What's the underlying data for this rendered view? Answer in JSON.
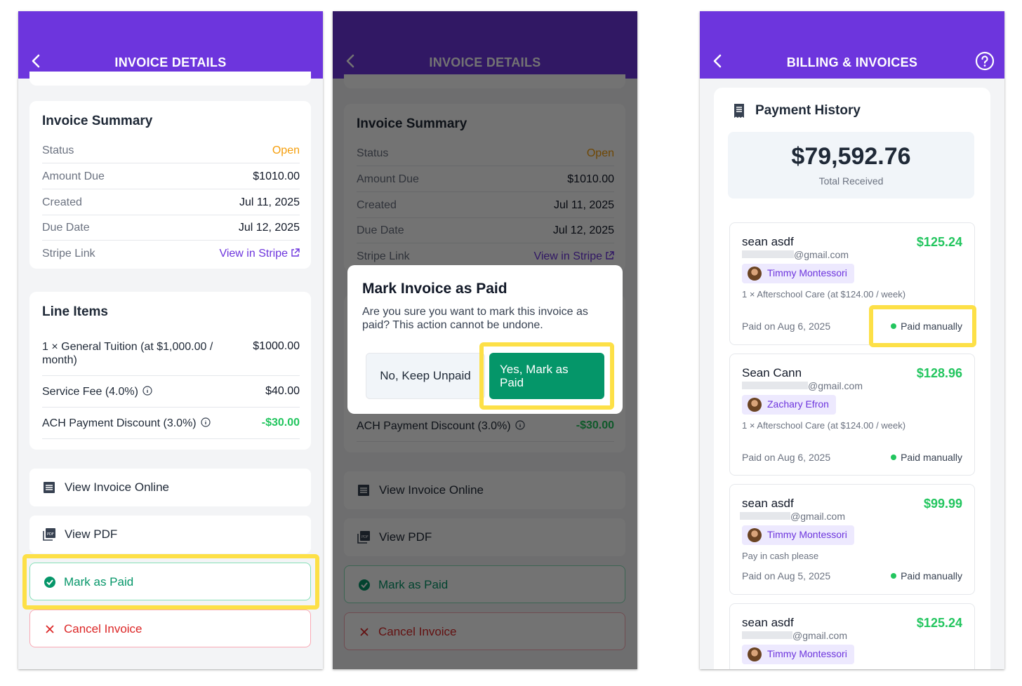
{
  "colors": {
    "brand": "#6d35dd",
    "success": "#059669",
    "positive_amount": "#22c55e",
    "danger": "#dc2626",
    "warning": "#f59e0b",
    "highlight": "#fde047"
  },
  "screen1": {
    "header_title": "INVOICE DETAILS",
    "summary": {
      "title": "Invoice Summary",
      "rows": [
        {
          "label": "Status",
          "value": "Open"
        },
        {
          "label": "Amount Due",
          "value": "$1010.00"
        },
        {
          "label": "Created",
          "value": "Jul 11, 2025"
        },
        {
          "label": "Due Date",
          "value": "Jul 12, 2025"
        },
        {
          "label": "Stripe Link",
          "value": "View in Stripe"
        }
      ]
    },
    "line_items": {
      "title": "Line Items",
      "items": [
        {
          "label": "1 × General Tuition (at $1,000.00 / month)",
          "value": "$1000.00"
        },
        {
          "label": "Service Fee (4.0%)",
          "value": "$40.00"
        },
        {
          "label": "ACH Payment Discount (3.0%)",
          "value": "-$30.00"
        }
      ]
    },
    "actions": {
      "view_online": "View Invoice Online",
      "view_pdf": "View PDF",
      "mark_paid": "Mark as Paid",
      "cancel": "Cancel Invoice"
    }
  },
  "screen2": {
    "modal": {
      "title": "Mark Invoice as Paid",
      "message": "Are you sure you want to mark this invoice as paid? This action cannot be undone.",
      "cancel_label": "No, Keep Unpaid",
      "confirm_label": "Yes, Mark as Paid"
    }
  },
  "screen3": {
    "header_title": "BILLING & INVOICES",
    "section_title": "Payment History",
    "total_amount": "$79,592.76",
    "total_caption": "Total Received",
    "payments": [
      {
        "name": "sean asdf",
        "email": "@gmail.com",
        "amount": "$125.24",
        "student": "Timmy Montessori",
        "description": "1 × Afterschool Care (at $124.00 / week)",
        "paid_on": "Paid on Aug 6, 2025",
        "status": "Paid manually"
      },
      {
        "name": "Sean Cann",
        "email": "@gmail.com",
        "amount": "$128.96",
        "student": "Zachary Efron",
        "description": "1 × Afterschool Care (at $124.00 / week)",
        "paid_on": "Paid on Aug 6, 2025",
        "status": "Paid manually"
      },
      {
        "name": "sean asdf",
        "email": "@gmail.com",
        "amount": "$99.99",
        "student": "Timmy Montessori",
        "description": "Pay in cash please",
        "paid_on": "Paid on Aug 5, 2025",
        "status": "Paid manually"
      },
      {
        "name": "sean asdf",
        "email": "@gmail.com",
        "amount": "$125.24",
        "student": "Timmy Montessori",
        "description": "",
        "paid_on": "",
        "status": ""
      }
    ]
  }
}
